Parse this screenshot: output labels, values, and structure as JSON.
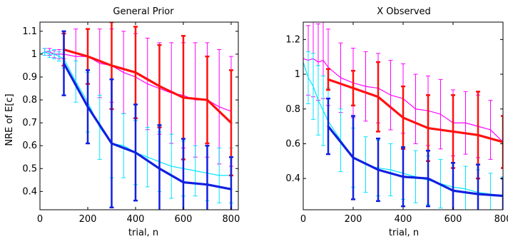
{
  "chart_data": [
    {
      "type": "line",
      "title": "General Prior",
      "xlabel": "trial, n",
      "ylabel": "NRE of E[c]",
      "xlim": [
        0,
        830
      ],
      "ylim": [
        0.32,
        1.14
      ],
      "xticks": [
        0,
        200,
        400,
        600,
        800
      ],
      "yticks": [
        0.4,
        0.5,
        0.6,
        0.7,
        0.8,
        0.9,
        1,
        1.1
      ],
      "xtick_labels": [
        "0",
        "200",
        "400",
        "600",
        "800"
      ],
      "ytick_labels": [
        "0.4",
        "0.5",
        "0.6",
        "0.7",
        "0.8",
        "0.9",
        "1",
        "1.1"
      ],
      "grid": false,
      "series": [
        {
          "color": "#ff00ff",
          "style": "thin",
          "x": [
            0,
            20,
            40,
            60,
            80,
            100,
            150,
            200,
            250,
            300,
            350,
            400,
            450,
            500,
            550,
            600,
            650,
            700,
            750,
            800
          ],
          "y": [
            1.0,
            1.01,
            1.01,
            1.0,
            1.0,
            1.0,
            0.99,
            0.99,
            0.96,
            0.95,
            0.92,
            0.9,
            0.87,
            0.85,
            0.83,
            0.82,
            0.8,
            0.8,
            0.77,
            0.75
          ],
          "err": [
            0,
            0.015,
            0.015,
            0.015,
            0.02,
            0.02,
            0.12,
            0.12,
            0.15,
            0.16,
            0.18,
            0.19,
            0.2,
            0.2,
            0.22,
            0.23,
            0.25,
            0.25,
            0.25,
            0.24
          ]
        },
        {
          "color": "#00e5ff",
          "style": "thin",
          "x": [
            0,
            20,
            40,
            60,
            80,
            100,
            150,
            200,
            250,
            300,
            350,
            400,
            450,
            500,
            550,
            600,
            650,
            700,
            750,
            800
          ],
          "y": [
            1.0,
            1.01,
            1.0,
            1.0,
            0.99,
            0.98,
            0.88,
            0.79,
            0.68,
            0.61,
            0.6,
            0.57,
            0.55,
            0.53,
            0.51,
            0.5,
            0.49,
            0.48,
            0.47,
            0.47
          ],
          "err": [
            0,
            0.015,
            0.015,
            0.02,
            0.02,
            0.04,
            0.09,
            0.13,
            0.14,
            0.15,
            0.14,
            0.14,
            0.13,
            0.13,
            0.14,
            0.12,
            0.11,
            0.12,
            0.12,
            0.12
          ]
        },
        {
          "color": "#ff1010",
          "style": "thick",
          "x": [
            100,
            200,
            300,
            400,
            500,
            600,
            700,
            800
          ],
          "y": [
            1.02,
            0.99,
            0.95,
            0.92,
            0.86,
            0.81,
            0.8,
            0.7
          ],
          "err": [
            0.07,
            0.12,
            0.19,
            0.2,
            0.18,
            0.27,
            0.19,
            0.23
          ]
        },
        {
          "color": "#1020e0",
          "style": "thick",
          "x": [
            100,
            200,
            300,
            400,
            500,
            600,
            700,
            800
          ],
          "y": [
            0.96,
            0.77,
            0.61,
            0.57,
            0.5,
            0.44,
            0.43,
            0.41
          ],
          "err": [
            0.14,
            0.16,
            0.28,
            0.21,
            0.19,
            0.19,
            0.17,
            0.14
          ]
        }
      ]
    },
    {
      "type": "line",
      "title": "X Observed",
      "xlabel": "trial, n",
      "ylabel": "",
      "xlim": [
        0,
        800
      ],
      "ylim": [
        0.22,
        1.3
      ],
      "xticks": [
        0,
        200,
        400,
        600,
        800
      ],
      "yticks": [
        0.4,
        0.6,
        0.8,
        1,
        1.2
      ],
      "xtick_labels": [
        "0",
        "200",
        "400",
        "600",
        "800"
      ],
      "ytick_labels": [
        "0.4",
        "0.6",
        "0.8",
        "1",
        "1.2"
      ],
      "grid": false,
      "series": [
        {
          "color": "#ff00ff",
          "style": "thin",
          "x": [
            0,
            20,
            40,
            60,
            80,
            100,
            150,
            200,
            250,
            300,
            350,
            400,
            450,
            500,
            550,
            600,
            650,
            700,
            750,
            800
          ],
          "y": [
            1.09,
            1.08,
            1.09,
            1.07,
            1.08,
            1.04,
            0.98,
            0.95,
            0.93,
            0.92,
            0.88,
            0.86,
            0.8,
            0.79,
            0.77,
            0.72,
            0.72,
            0.7,
            0.68,
            0.61
          ],
          "err": [
            0,
            0.2,
            0.22,
            0.22,
            0.22,
            0.22,
            0.2,
            0.2,
            0.2,
            0.2,
            0.2,
            0.2,
            0.2,
            0.2,
            0.2,
            0.19,
            0.18,
            0.18,
            0.17,
            0.15
          ]
        },
        {
          "color": "#00e5ff",
          "style": "thin",
          "x": [
            0,
            20,
            40,
            60,
            80,
            100,
            150,
            200,
            250,
            300,
            350,
            400,
            450,
            500,
            550,
            600,
            650,
            700,
            750,
            800
          ],
          "y": [
            1.07,
            0.98,
            0.93,
            0.85,
            0.79,
            0.73,
            0.62,
            0.52,
            0.48,
            0.46,
            0.45,
            0.43,
            0.41,
            0.39,
            0.37,
            0.35,
            0.34,
            0.32,
            0.31,
            0.3
          ],
          "err": [
            0,
            0.15,
            0.19,
            0.2,
            0.2,
            0.19,
            0.18,
            0.17,
            0.16,
            0.16,
            0.15,
            0.15,
            0.15,
            0.14,
            0.14,
            0.14,
            0.13,
            0.13,
            0.12,
            0.11
          ]
        },
        {
          "color": "#ff1010",
          "style": "thick",
          "x": [
            100,
            200,
            300,
            400,
            500,
            600,
            700,
            800
          ],
          "y": [
            0.97,
            0.92,
            0.87,
            0.75,
            0.69,
            0.67,
            0.65,
            0.61
          ],
          "err": [
            0.06,
            0.1,
            0.2,
            0.18,
            0.19,
            0.21,
            0.25,
            0.15
          ]
        },
        {
          "color": "#1020e0",
          "style": "thick",
          "x": [
            100,
            200,
            300,
            400,
            500,
            600,
            700,
            800
          ],
          "y": [
            0.7,
            0.52,
            0.45,
            0.41,
            0.4,
            0.33,
            0.31,
            0.3
          ],
          "err": [
            0.16,
            0.24,
            0.18,
            0.17,
            0.16,
            0.16,
            0.17,
            0.1
          ]
        }
      ]
    }
  ]
}
